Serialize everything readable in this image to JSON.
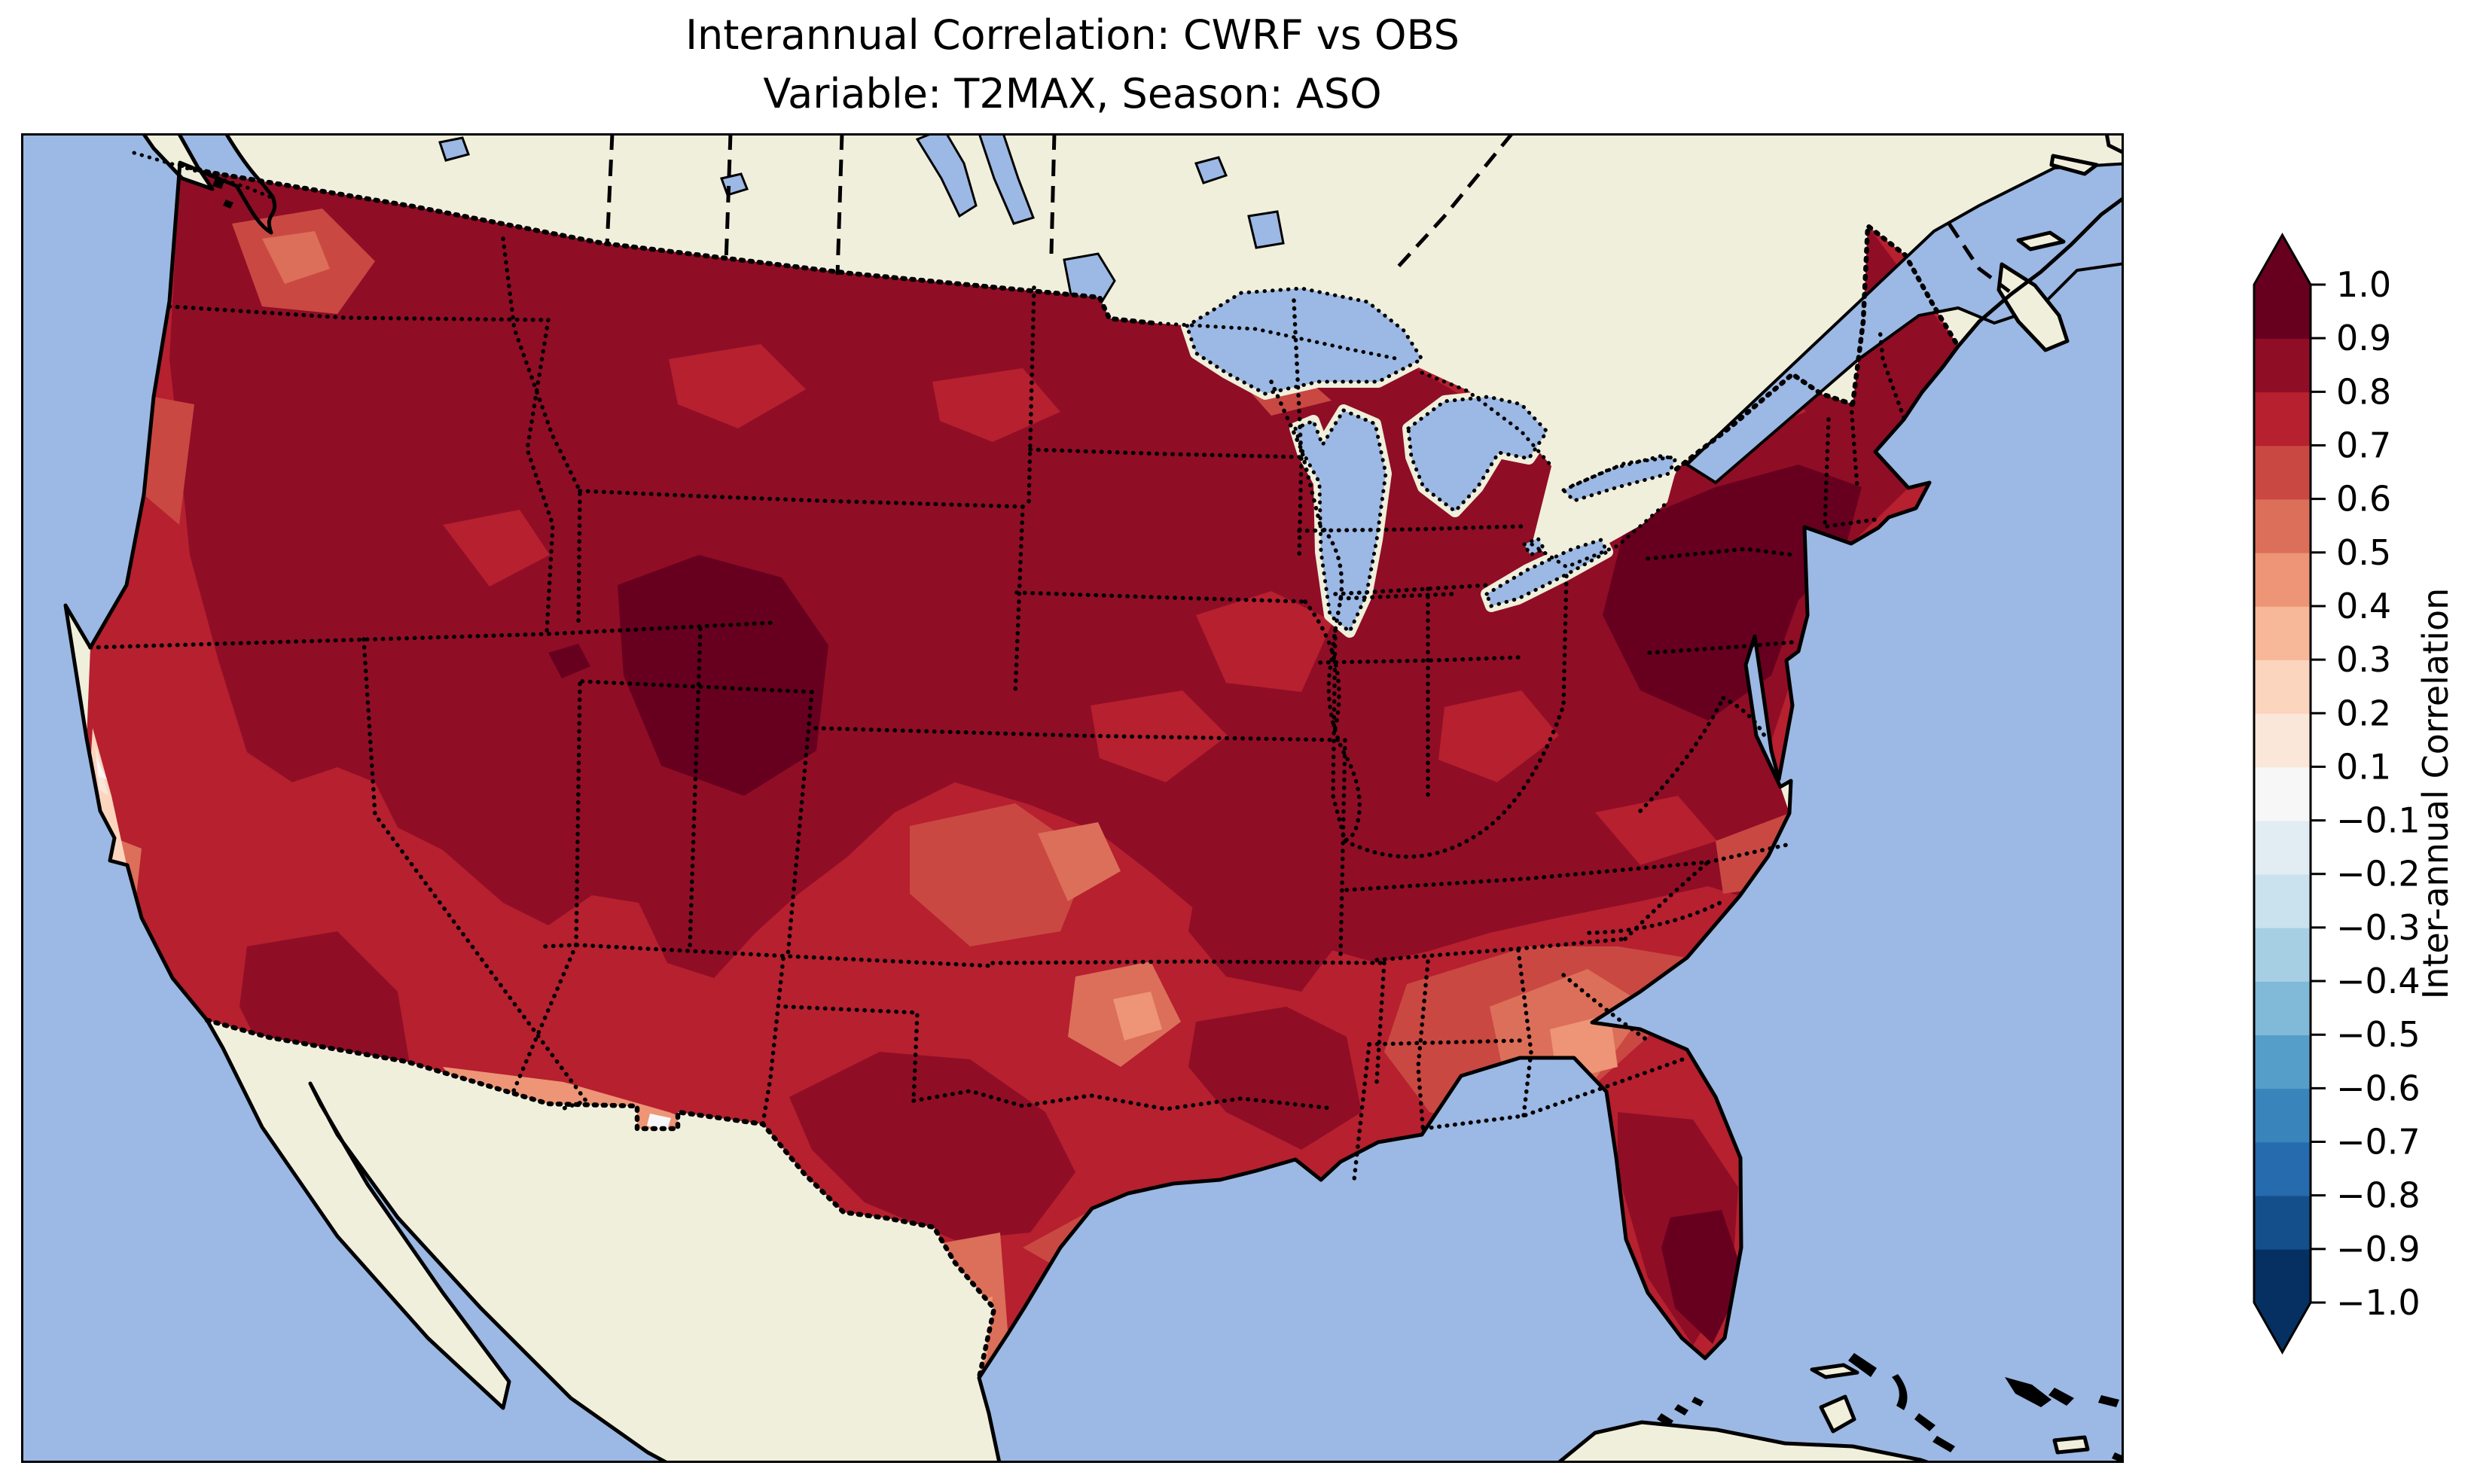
{
  "chart_data": {
    "type": "heatmap",
    "title": "Interannual Correlation: CWRF vs OBS",
    "subtitle": "Variable: T2MAX, Season: ASO",
    "comparison": "CWRF vs OBS",
    "variable": "T2MAX",
    "season": "ASO",
    "colorbar": {
      "label": "Inter-annual Correlation",
      "orientation": "vertical",
      "extend": "both",
      "tick_labels": [
        "1.0",
        "0.9",
        "0.8",
        "0.7",
        "0.6",
        "0.5",
        "0.4",
        "0.3",
        "0.2",
        "0.1",
        "−0.1",
        "−0.2",
        "−0.3",
        "−0.4",
        "−0.5",
        "−0.6",
        "−0.7",
        "−0.8",
        "−0.9",
        "−1.0"
      ]
    },
    "levels": [
      -1.0,
      -0.9,
      -0.8,
      -0.7,
      -0.6,
      -0.5,
      -0.4,
      -0.3,
      -0.2,
      -0.1,
      0.1,
      0.2,
      0.3,
      0.4,
      0.5,
      0.6,
      0.7,
      0.8,
      0.9,
      1.0
    ],
    "segments": [
      {
        "range": [
          -1.0,
          -0.9
        ],
        "color": "#053061"
      },
      {
        "range": [
          -0.9,
          -0.8
        ],
        "color": "#144e8b"
      },
      {
        "range": [
          -0.8,
          -0.7
        ],
        "color": "#256bae"
      },
      {
        "range": [
          -0.7,
          -0.6
        ],
        "color": "#3884bb"
      },
      {
        "range": [
          -0.6,
          -0.5
        ],
        "color": "#559ec9"
      },
      {
        "range": [
          -0.5,
          -0.4
        ],
        "color": "#80bad8"
      },
      {
        "range": [
          -0.4,
          -0.3
        ],
        "color": "#a7cfe4"
      },
      {
        "range": [
          -0.3,
          -0.2
        ],
        "color": "#cae1ee"
      },
      {
        "range": [
          -0.2,
          -0.1
        ],
        "color": "#e2edf3"
      },
      {
        "range": [
          -0.1,
          0.1
        ],
        "color": "#f7f7f7"
      },
      {
        "range": [
          0.1,
          0.2
        ],
        "color": "#fae7d9"
      },
      {
        "range": [
          0.2,
          0.3
        ],
        "color": "#fcd5bf"
      },
      {
        "range": [
          0.3,
          0.4
        ],
        "color": "#f7b799"
      },
      {
        "range": [
          0.4,
          0.5
        ],
        "color": "#ed9576"
      },
      {
        "range": [
          0.5,
          0.6
        ],
        "color": "#dc6f59"
      },
      {
        "range": [
          0.6,
          0.7
        ],
        "color": "#ca4842"
      },
      {
        "range": [
          0.7,
          0.8
        ],
        "color": "#b6202f"
      },
      {
        "range": [
          0.8,
          0.9
        ],
        "color": "#900d26"
      },
      {
        "range": [
          0.9,
          1.0
        ],
        "color": "#67001f"
      }
    ],
    "extend_colors": {
      "over": "#67001f",
      "under": "#053061"
    },
    "palette": {
      "r09": "#67001f",
      "r08": "#900d26",
      "r07": "#b6202f",
      "r06": "#ca4842",
      "r05": "#dc6f59",
      "r04": "#ed9576",
      "r03": "#f7b799",
      "r02": "#fcd5bf",
      "r01": "#fae7d9",
      "r00": "#f7f7f7"
    },
    "map_colors": {
      "ocean": "#9cb8e4",
      "lake": "#9cb8e4",
      "land": "#f0efdc",
      "coastline": "#000000",
      "borders": "#000000",
      "background": "#ffffff"
    },
    "region_readings": [
      {
        "region": "Pacific Northwest (WA/OR/ID)",
        "correlation": "0.7–0.9"
      },
      {
        "region": "Northern California coast",
        "correlation": "0.0–0.4"
      },
      {
        "region": "Southern California interior",
        "correlation": "0.8–0.9"
      },
      {
        "region": "Great Basin (NV/UT)",
        "correlation": "0.7–0.9"
      },
      {
        "region": "Wyoming–Colorado Rockies",
        "correlation": "0.9–1.0"
      },
      {
        "region": "Montana and Dakotas",
        "correlation": "0.8–0.9"
      },
      {
        "region": "Upper Midwest and Great Lakes",
        "correlation": "0.8–0.9"
      },
      {
        "region": "Corn Belt (IA/IL/IN/OH)",
        "correlation": "0.7–0.9"
      },
      {
        "region": "Central Plains (NE/KS/OK)",
        "correlation": "0.5–0.8"
      },
      {
        "region": "Southwest borderlands (S. AZ / SW NM)",
        "correlation": "0.0–0.4"
      },
      {
        "region": "Texas interior",
        "correlation": "0.7–0.9"
      },
      {
        "region": "South Texas and western Gulf Coast",
        "correlation": "0.3–0.6"
      },
      {
        "region": "Lower Mississippi Valley (LA/MS/AR)",
        "correlation": "0.6–0.9"
      },
      {
        "region": "Southeast coastal plain (GA/SC/AL)",
        "correlation": "0.4–0.6"
      },
      {
        "region": "Appalachians (TN/KY/VA)",
        "correlation": "0.8–0.9"
      },
      {
        "region": "Mid-Atlantic and Northeast (NY/PA/New England)",
        "correlation": "0.8–1.0"
      },
      {
        "region": "Florida peninsula",
        "correlation": "0.8–1.0"
      }
    ]
  }
}
